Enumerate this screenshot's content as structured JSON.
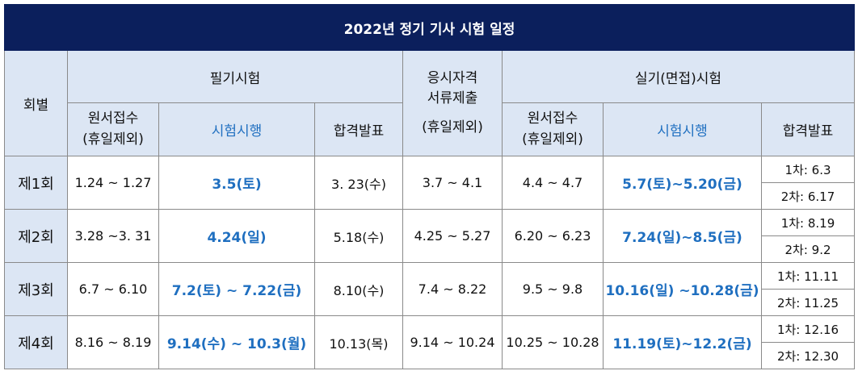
{
  "title": "2022년 정기 기사 시험 일정",
  "headers": {
    "round": "회별",
    "written": "필기시험",
    "qualification_line1": "응시자격",
    "qualification_line2": "서류제출",
    "qualification_line3": "(휴일제외)",
    "practical": "실기(면접)시험",
    "apply_line1": "원서접수",
    "apply_line2": "(휴일제외)",
    "exam": "시험시행",
    "result": "합격발표"
  },
  "rows": [
    {
      "round": "제1회",
      "written_apply": "1.24 ~ 1.27",
      "written_exam": "3.5(토)",
      "written_result": "3. 23(수)",
      "qualification": "3.7 ~ 4.1",
      "practical_apply": "4.4 ~ 4.7",
      "practical_exam": "5.7(토)~5.20(금)",
      "result_first": "1차: 6.3",
      "result_second": "2차: 6.17"
    },
    {
      "round": "제2회",
      "written_apply": "3.28 ~3. 31",
      "written_exam": "4.24(일)",
      "written_result": "5.18(수)",
      "qualification": "4.25 ~ 5.27",
      "practical_apply": "6.20 ~ 6.23",
      "practical_exam": "7.24(일)~8.5(금)",
      "result_first": "1차: 8.19",
      "result_second": "2차: 9.2"
    },
    {
      "round": "제3회",
      "written_apply": "6.7 ~ 6.10",
      "written_exam": "7.2(토) ~ 7.22(금)",
      "written_result": "8.10(수)",
      "qualification": "7.4 ~ 8.22",
      "practical_apply": "9.5 ~ 9.8",
      "practical_exam": "10.16(일) ~10.28(금)",
      "result_first": "1차: 11.11",
      "result_second": "2차: 11.25"
    },
    {
      "round": "제4회",
      "written_apply": "8.16 ~ 8.19",
      "written_exam": "9.14(수) ~ 10.3(월)",
      "written_result": "10.13(목)",
      "qualification": "9.14 ~ 10.24",
      "practical_apply": "10.25 ~ 10.28",
      "practical_exam": "11.19(토)~12.2(금)",
      "result_first": "1차: 12.16",
      "result_second": "2차: 12.30"
    }
  ],
  "colors": {
    "title_bg": "#0b1f5c",
    "header_bg": "#dce6f4",
    "accent_blue": "#1f6fc0"
  }
}
